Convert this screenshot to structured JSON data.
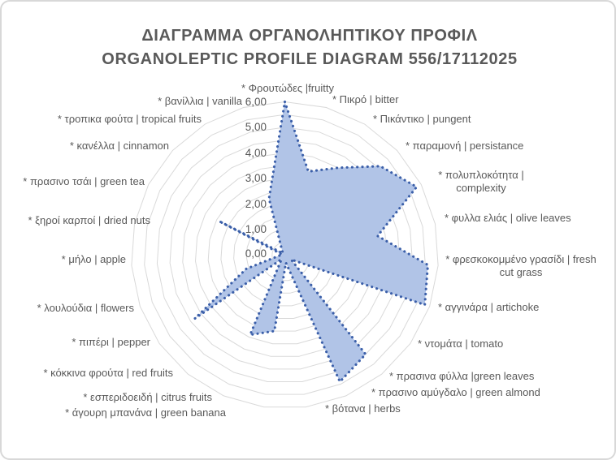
{
  "title": {
    "line1": "ΔΙΑΓΡΑΜΜΑ ΟΡΓΑΝΟΛΗΠΤΙΚΟΥ ΠΡΟΦΙΛ",
    "line2": "ORGANOLEPTIC PROFILE DIAGRAM 556/17112025"
  },
  "chart_data": {
    "type": "radar",
    "start": "top",
    "direction": "clockwise",
    "categories": [
      "* Φρουτώδες |fruitty",
      "* Πικρό | bitter",
      "* Πικάντικο | pungent",
      "* παραμονή | persistance",
      "* πολυπλοκότητα | complexity",
      "* φυλλα ελιάς | olive leaves",
      "* φρεσκοκομμένο γρασίδι | fresh cut grass",
      "* αγγινάρα | artichoke",
      "* ντομάτα | tomato",
      "* πρασινα φύλλα |green leaves",
      "* πρασινο αμύγδαλο | green almond",
      "* βότανα | herbs",
      "* άγουρη μπανάνα | green banana",
      "* εσπεριδοειδή | citrus fruits",
      "* κόκκινα φρούτα | red fruits",
      "* πιπέρι | pepper",
      "* λουλούδια | flowers",
      "* μήλο | apple",
      "* ξηροί καρποί | dried nuts",
      "* πρασινο τσάι | green tea",
      "* κανέλλα | cinnamon",
      "* τροπικα φούτα | tropical fruits",
      "* βανίλλια | vanilla"
    ],
    "values": [
      6.0,
      3.4,
      4.0,
      5.1,
      5.8,
      3.7,
      5.6,
      5.8,
      0.3,
      5.0,
      5.4,
      0.3,
      3.0,
      3.4,
      0.2,
      4.3,
      1.6,
      0.2,
      0.1,
      2.9,
      0.1,
      0.2,
      2.3
    ],
    "radial_ticks": [
      "0,00",
      "1,00",
      "2,00",
      "3,00",
      "4,00",
      "5,00",
      "6,00"
    ],
    "rlim": [
      0,
      6
    ],
    "grid_interval": 0.5,
    "legend": "none",
    "colors": {
      "fill": "#b1c4e7",
      "stroke": "#3b5fa9",
      "grid": "#d9d9d9",
      "text": "#595959"
    }
  }
}
